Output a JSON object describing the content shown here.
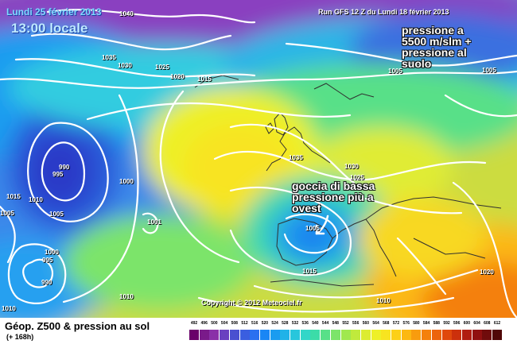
{
  "header": {
    "date": "Lundi 25 février 2013",
    "time": "13:00 locale",
    "run": "Run GFS 12 Z du Lundi 18 février 2013"
  },
  "annotations": {
    "pressure_note": [
      "pressione a",
      "5500 m/slm +",
      "pressione al",
      "suolo"
    ],
    "low_note": [
      "goccia di bassa",
      "pressione più a",
      "ovest"
    ]
  },
  "copyright": "Copyright © 2012 Meteociel.fr",
  "isobars": [
    "1040",
    "1035",
    "1030",
    "1025",
    "1020",
    "1015",
    "1005",
    "1005",
    "1035",
    "1025",
    "1030",
    "990",
    "995",
    "1000",
    "1010",
    "1005",
    "1001",
    "1000",
    "995",
    "990",
    "1010",
    "1010",
    "1015",
    "1010",
    "1020",
    "1005",
    "1005",
    "1015"
  ],
  "footer": {
    "title": "Géop. Z500 & pression au sol",
    "subtitle": "(+ 168h)"
  },
  "scale": {
    "labels": [
      "492",
      "496",
      "500",
      "504",
      "508",
      "512",
      "516",
      "520",
      "524",
      "528",
      "532",
      "536",
      "540",
      "544",
      "548",
      "552",
      "556",
      "560",
      "564",
      "568",
      "572",
      "576",
      "580",
      "584",
      "588",
      "592",
      "596",
      "600",
      "604",
      "608",
      "612"
    ],
    "colors": [
      "#6a006a",
      "#7a1a8a",
      "#8a30a8",
      "#6a40c0",
      "#4a50d0",
      "#3a5ee0",
      "#2a70f0",
      "#1a86f5",
      "#1a9cf0",
      "#20b2e8",
      "#28c6dc",
      "#32d6c8",
      "#3cdca8",
      "#58e088",
      "#7ce46a",
      "#a0e84e",
      "#c0ea3c",
      "#dcec30",
      "#eef028",
      "#f8e420",
      "#fcd018",
      "#fcb812",
      "#f89c0e",
      "#f4800c",
      "#ec640c",
      "#e0480c",
      "#cc300c",
      "#b01c10",
      "#901010",
      "#700c0c",
      "#500808"
    ]
  }
}
